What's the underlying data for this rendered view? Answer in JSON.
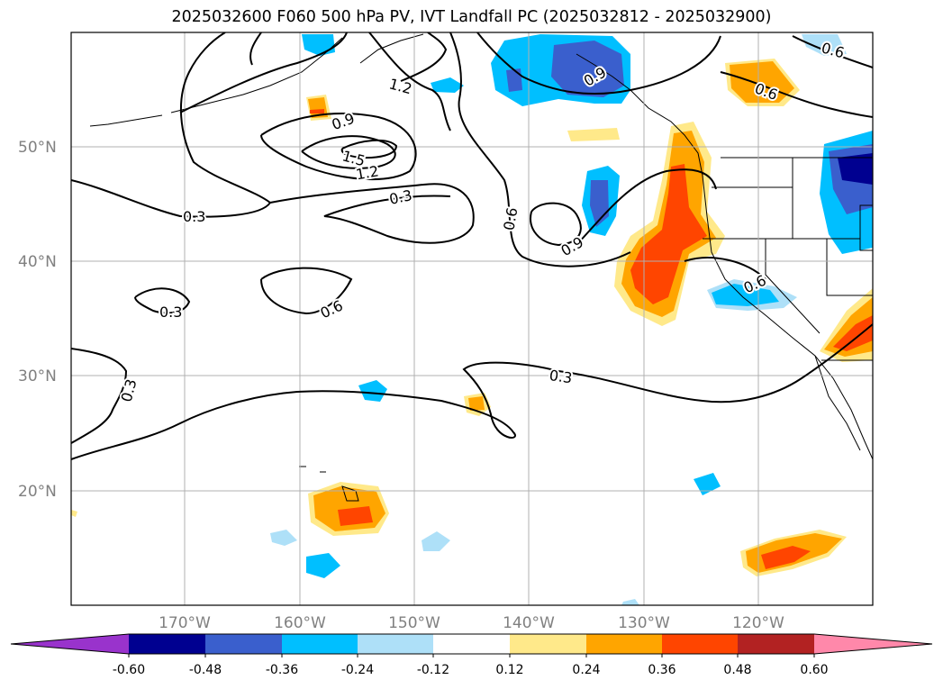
{
  "title": "2025032600 F060 500 hPa PV, IVT Landfall PC (2025032812 - 2025032900)",
  "lat_labels": [
    "50°N",
    "40°N",
    "30°N",
    "20°N"
  ],
  "lon_labels": [
    "170°W",
    "160°W",
    "150°W",
    "140°W",
    "130°W",
    "120°W"
  ],
  "contour_labels": [
    "1.2",
    "0.9",
    "1.5",
    "1.2",
    "0.3",
    "0.3",
    "0.6",
    "0.9",
    "0.6",
    "0.3",
    "0.6",
    "0.3",
    "0.3",
    "0.6",
    "0.6",
    "0.9"
  ],
  "colorbar": {
    "tick_labels": [
      "-0.60",
      "-0.48",
      "-0.36",
      "-0.24",
      "-0.12",
      "0.12",
      "0.24",
      "0.36",
      "0.48",
      "0.60"
    ],
    "colors": [
      "#9933cc",
      "#000090",
      "#3a5fcd",
      "#00bfff",
      "#aee0f8",
      "#ffffff",
      "#ffe98a",
      "#ffa500",
      "#ff4500",
      "#b22222",
      "#ff88aa"
    ]
  }
}
